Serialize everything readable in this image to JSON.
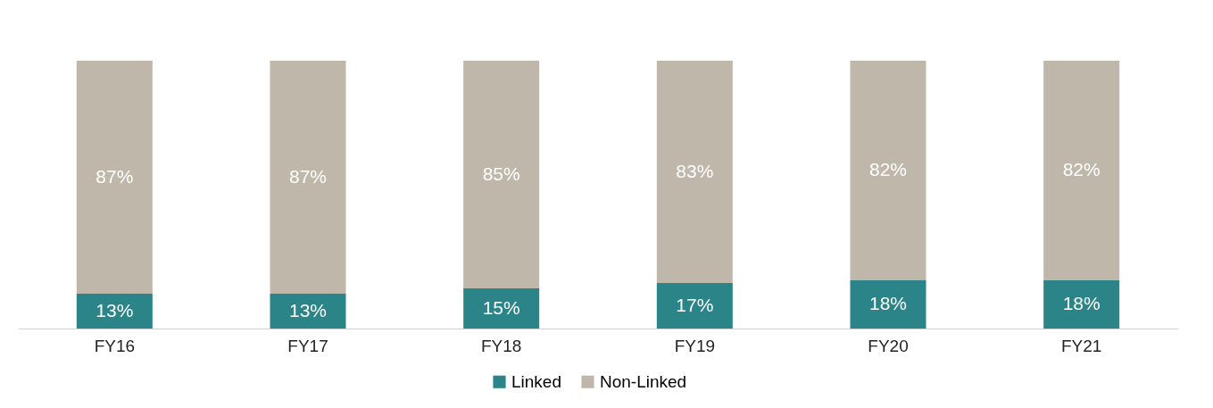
{
  "chart_data": {
    "type": "bar",
    "stacked": true,
    "legend": "bottom",
    "categories": [
      "FY16",
      "FY17",
      "FY18",
      "FY19",
      "FY20",
      "FY21"
    ],
    "series": [
      {
        "name": "Linked",
        "color": "#2a8488",
        "values": [
          13,
          13,
          15,
          17,
          18,
          18
        ],
        "value_labels": [
          "13%",
          "13%",
          "15%",
          "17%",
          "18%",
          "18%"
        ]
      },
      {
        "name": "Non-Linked",
        "color": "#bfb7aa",
        "values": [
          87,
          87,
          85,
          83,
          82,
          82
        ],
        "value_labels": [
          "87%",
          "87%",
          "85%",
          "83%",
          "82%",
          "82%"
        ]
      }
    ]
  }
}
